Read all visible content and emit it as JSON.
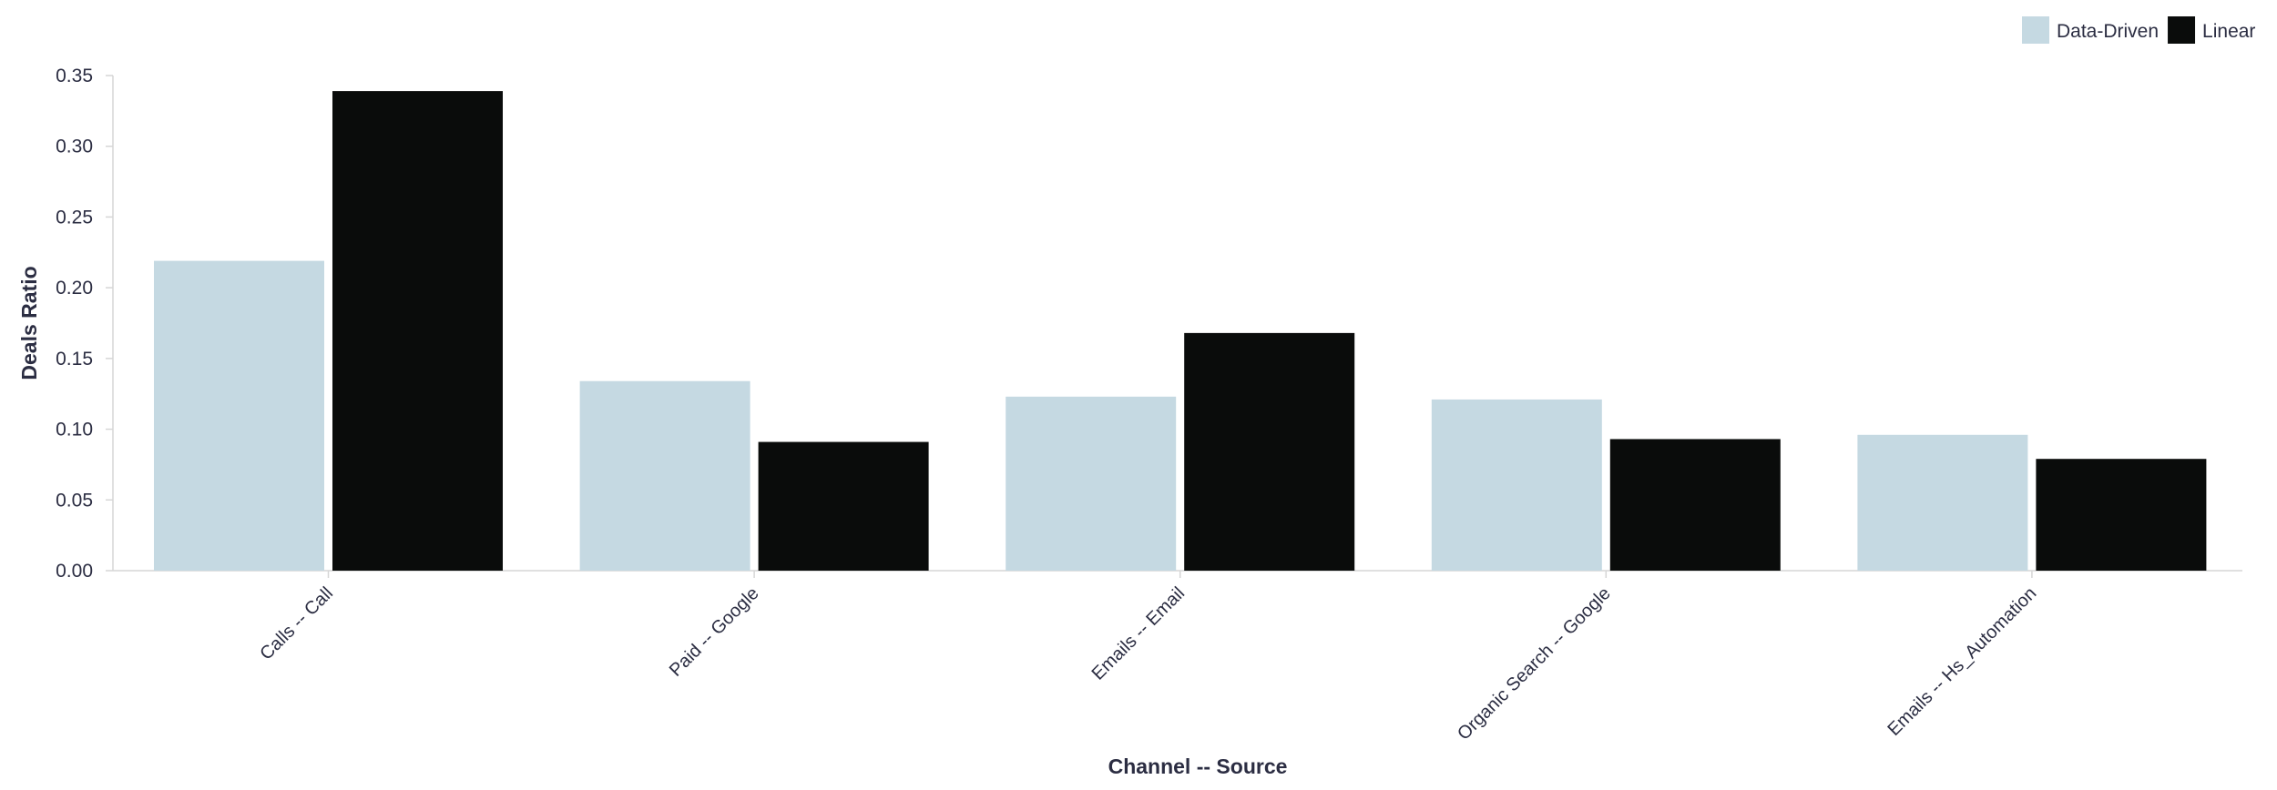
{
  "chart_data": {
    "type": "bar",
    "categories": [
      "Calls -- Call",
      "Paid -- Google",
      "Emails -- Email",
      "Organic Search -- Google",
      "Emails -- Hs_Automation"
    ],
    "series": [
      {
        "name": "Data-Driven",
        "color": "#c5d9e2",
        "values": [
          0.219,
          0.134,
          0.123,
          0.121,
          0.096
        ]
      },
      {
        "name": "Linear",
        "color": "#0a0c0b",
        "values": [
          0.339,
          0.091,
          0.168,
          0.093,
          0.079
        ]
      }
    ],
    "title": "",
    "xlabel": "Channel -- Source",
    "ylabel": "Deals Ratio",
    "ylim": [
      0,
      0.35
    ],
    "yticks": [
      "0.00",
      "0.05",
      "0.10",
      "0.15",
      "0.20",
      "0.25",
      "0.30",
      "0.35"
    ],
    "grid": false,
    "legend_position": "top-right"
  }
}
